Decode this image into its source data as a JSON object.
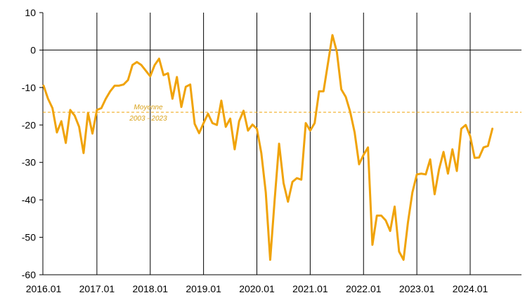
{
  "chart_data": {
    "type": "line",
    "x_tick_labels": [
      "2016.01",
      "2017.01",
      "2018.01",
      "2019.01",
      "2020.01",
      "2021.01",
      "2022.01",
      "2023.01",
      "2024.01"
    ],
    "y_tick_labels": [
      "10",
      "0",
      "-10",
      "-20",
      "-30",
      "-40",
      "-50",
      "-60"
    ],
    "ylim": [
      -60,
      10
    ],
    "y_ticks": [
      10,
      0,
      -10,
      -20,
      -30,
      -40,
      -50,
      -60
    ],
    "grid": "vertical lines at each January",
    "series": [
      {
        "color": "#f0a30a",
        "start": "2016.01",
        "frequency": "monthly",
        "values": [
          -9.5,
          -13,
          -15.5,
          -22,
          -19,
          -24.8,
          -16,
          -17.5,
          -20.5,
          -27.5,
          -16.8,
          -22.3,
          -16,
          -15.5,
          -13,
          -11,
          -9.5,
          -9.5,
          -9.2,
          -8,
          -4,
          -3.2,
          -4,
          -5.5,
          -7,
          -4,
          -2.3,
          -6.7,
          -6.2,
          -13,
          -7.2,
          -15.2,
          -9.8,
          -9.2,
          -19.7,
          -22.2,
          -19.5,
          -17,
          -19.5,
          -20,
          -13.5,
          -20.5,
          -18.3,
          -26.5,
          -19,
          -16.2,
          -21.5,
          -19.9,
          -21,
          -27.5,
          -38,
          -56,
          -40,
          -25,
          -35.5,
          -40.5,
          -35.2,
          -34.2,
          -34.6,
          -19.5,
          -21.5,
          -19.5,
          -11,
          -11,
          -3.5,
          4,
          -0.5,
          -10.5,
          -12.5,
          -16.5,
          -22,
          -30.5,
          -28,
          -26,
          -52,
          -44.2,
          -44.2,
          -45.5,
          -48.3,
          -41.8,
          -53.8,
          -56,
          -46,
          -38,
          -33.2,
          -33,
          -33.2,
          -29.2,
          -38.5,
          -31.8,
          -27.2,
          -33,
          -26.5,
          -32.3,
          -21,
          -20,
          -23,
          -28.8,
          -28.7,
          -26,
          -25.6,
          -21
        ]
      }
    ],
    "reference_line": {
      "value": -16.6,
      "color": "#f0a30a",
      "style": "dashed"
    },
    "annotation": {
      "line1": "Moyenne",
      "line2": "2003 - 2023",
      "color": "#d9a21b"
    }
  }
}
